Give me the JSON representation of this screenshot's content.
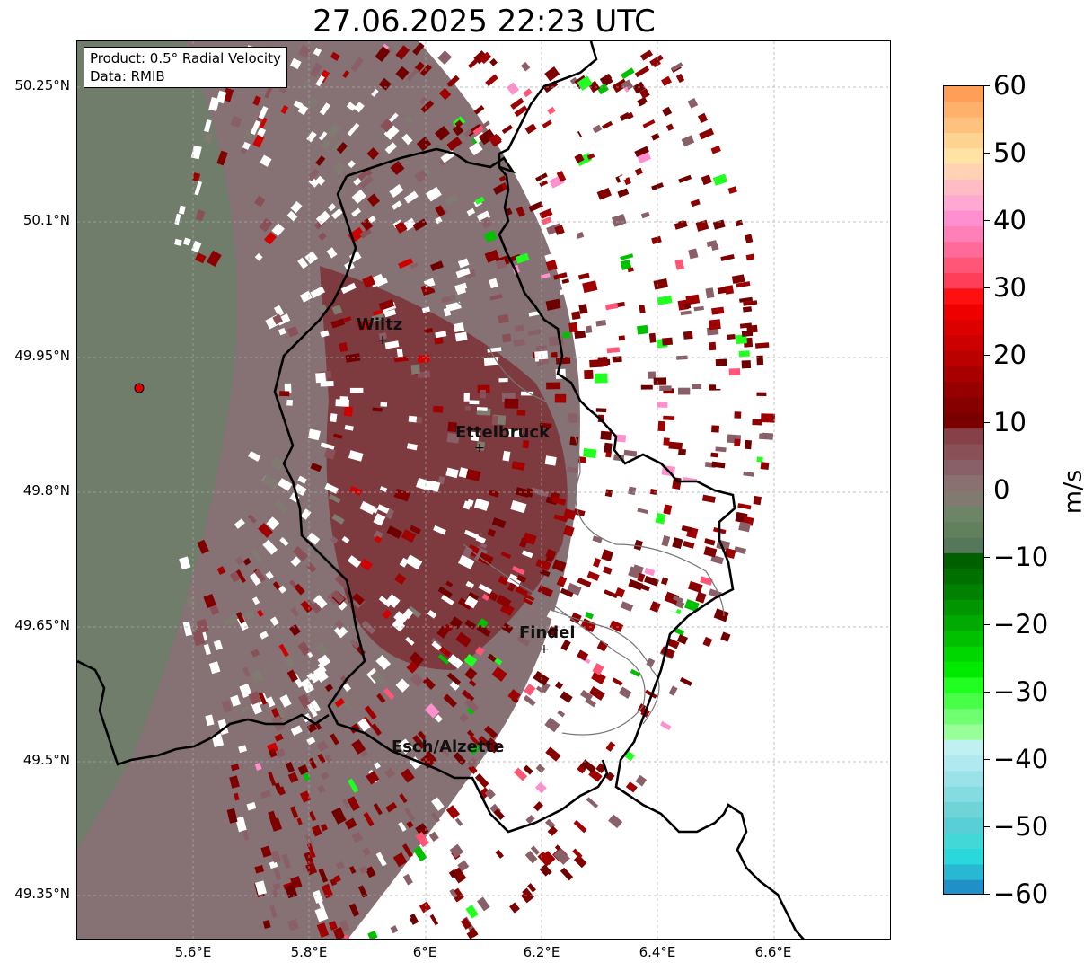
{
  "title": "27.06.2025 22:23 UTC",
  "info": {
    "product": "Product: 0.5° Radial Velocity",
    "data_source": "Data: RMIB"
  },
  "lat_ticks": [
    "50.25°N",
    "50.1°N",
    "49.95°N",
    "49.8°N",
    "49.65°N",
    "49.5°N",
    "49.35°N"
  ],
  "lon_ticks": [
    "5.6°E",
    "5.8°E",
    "6°E",
    "6.2°E",
    "6.4°E",
    "6.6°E"
  ],
  "cities": [
    {
      "name": "Wiltz"
    },
    {
      "name": "Ettelbruck"
    },
    {
      "name": "Findel"
    },
    {
      "name": "Esch/Alzette"
    }
  ],
  "colorbar": {
    "unit": "m/s",
    "min": -60,
    "max": 60,
    "ticks": [
      "60",
      "50",
      "40",
      "30",
      "20",
      "10",
      "0",
      "−10",
      "−20",
      "−30",
      "−40",
      "−50",
      "−60"
    ],
    "colors": [
      "#ff9e57",
      "#ffb06a",
      "#ffc27e",
      "#ffd492",
      "#ffe3a5",
      "#ffd2b4",
      "#ffbcc4",
      "#ffa8d2",
      "#ff90cf",
      "#ff7fb8",
      "#ff6a9a",
      "#ff5577",
      "#ff3f5a",
      "#ff1010",
      "#ee0000",
      "#dd0000",
      "#cc0000",
      "#bb0000",
      "#a80000",
      "#960000",
      "#860000",
      "#7a0000",
      "#864048",
      "#8a5058",
      "#8a6068",
      "#8a7070",
      "#807a70",
      "#6e8466",
      "#62805c",
      "#56785a",
      "#006000",
      "#007000",
      "#008200",
      "#009600",
      "#00aa00",
      "#00c000",
      "#00d600",
      "#00ea00",
      "#20ff20",
      "#48ff48",
      "#70ff70",
      "#98ff98",
      "#c0f0f0",
      "#b0eaf0",
      "#9ae2e8",
      "#84dce0",
      "#6ed4d8",
      "#58ced6",
      "#42d8d8",
      "#2ad8dc",
      "#28b8d4",
      "#2090c8"
    ]
  },
  "radar_site": {
    "marker": "red-dot"
  }
}
